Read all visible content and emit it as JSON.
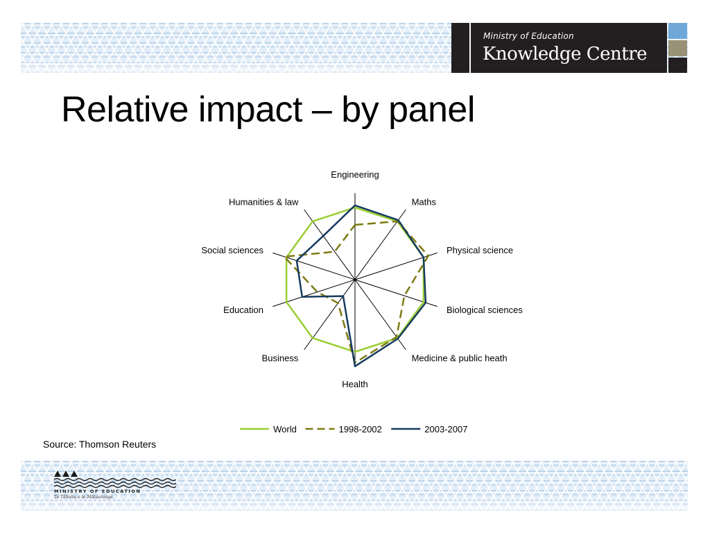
{
  "slide": {
    "title": "Relative impact – by panel",
    "source": "Source: Thomson Reuters"
  },
  "header_logo": {
    "ministry_text": "Ministry of Education",
    "centre_text": "Knowledge Centre",
    "swatch_colors": [
      "#6fa8d8",
      "#9a9276",
      "#231f20"
    ]
  },
  "footer_logo": {
    "caption": "MINISTRY OF EDUCATION",
    "subtitle": "Te Tāhuhu o te Mātauranga"
  },
  "colors": {
    "world": "#9acd32",
    "p1998_2002": "#7d7a12",
    "p2003_2007": "#163a5f",
    "axis": "#000000"
  },
  "chart_data": {
    "type": "radar",
    "categories": [
      "Engineering",
      "Maths",
      "Physical science",
      "Biological sciences",
      "Medicine & public heath",
      "Health",
      "Business",
      "Education",
      "Social sciences",
      "Humanities & law"
    ],
    "series": [
      {
        "name": "World",
        "style": "solid",
        "color": "#9acd32",
        "values": [
          1,
          1,
          1,
          1,
          1,
          1,
          1,
          1,
          1,
          1
        ]
      },
      {
        "name": "1998-2002",
        "style": "dashed",
        "color": "#7d7a12",
        "values": [
          0.76,
          1.0,
          1.07,
          0.72,
          0.98,
          1.15,
          0.4,
          0.55,
          1.03,
          0.48
        ]
      },
      {
        "name": "2003-2007",
        "style": "solid",
        "color": "#163a5f",
        "values": [
          1.03,
          1.02,
          1.0,
          1.03,
          1.01,
          1.2,
          0.28,
          0.77,
          0.85,
          0.75
        ]
      }
    ],
    "range": [
      0,
      1.2
    ],
    "legend_position": "bottom"
  }
}
